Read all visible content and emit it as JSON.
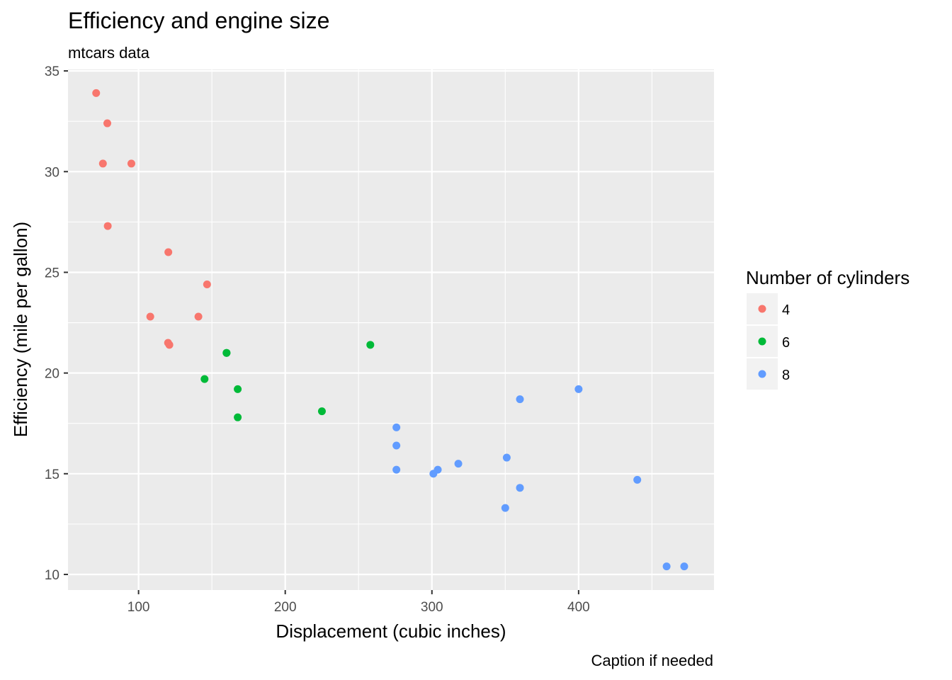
{
  "chart_data": {
    "type": "scatter",
    "title": "Efficiency and engine size",
    "subtitle": "mtcars data",
    "xlabel": "Displacement (cubic inches)",
    "ylabel": "Efficiency (mile per gallon)",
    "caption": "Caption if needed",
    "xlim": [
      51.9,
      492.3
    ],
    "ylim": [
      9.225,
      35.075
    ],
    "x_ticks": [
      100,
      200,
      300,
      400
    ],
    "y_ticks": [
      10,
      15,
      20,
      25,
      30,
      35
    ],
    "grid": true,
    "legend": {
      "title": "Number of cylinders",
      "placement": "right",
      "entries": [
        "4",
        "6",
        "8"
      ]
    },
    "series": [
      {
        "name": "4",
        "color": "#F8766D",
        "points": [
          [
            71.1,
            33.9
          ],
          [
            78.7,
            32.4
          ],
          [
            75.7,
            30.4
          ],
          [
            95.1,
            30.4
          ],
          [
            79.0,
            27.3
          ],
          [
            120.3,
            26.0
          ],
          [
            146.7,
            24.4
          ],
          [
            108.0,
            22.8
          ],
          [
            140.8,
            22.8
          ],
          [
            120.1,
            21.5
          ],
          [
            121.0,
            21.4
          ]
        ]
      },
      {
        "name": "6",
        "color": "#00BA38",
        "points": [
          [
            160.0,
            21.0
          ],
          [
            160.0,
            21.0
          ],
          [
            258.0,
            21.4
          ],
          [
            145.0,
            19.7
          ],
          [
            167.6,
            19.2
          ],
          [
            225.0,
            18.1
          ],
          [
            167.6,
            17.8
          ]
        ]
      },
      {
        "name": "8",
        "color": "#619CFF",
        "points": [
          [
            400.0,
            19.2
          ],
          [
            360.0,
            18.7
          ],
          [
            275.8,
            17.3
          ],
          [
            275.8,
            16.4
          ],
          [
            351.0,
            15.8
          ],
          [
            318.0,
            15.5
          ],
          [
            304.0,
            15.2
          ],
          [
            275.8,
            15.2
          ],
          [
            301.0,
            15.0
          ],
          [
            440.0,
            14.7
          ],
          [
            360.0,
            14.3
          ],
          [
            350.0,
            13.3
          ],
          [
            460.0,
            10.4
          ],
          [
            472.0,
            10.4
          ]
        ]
      }
    ]
  }
}
